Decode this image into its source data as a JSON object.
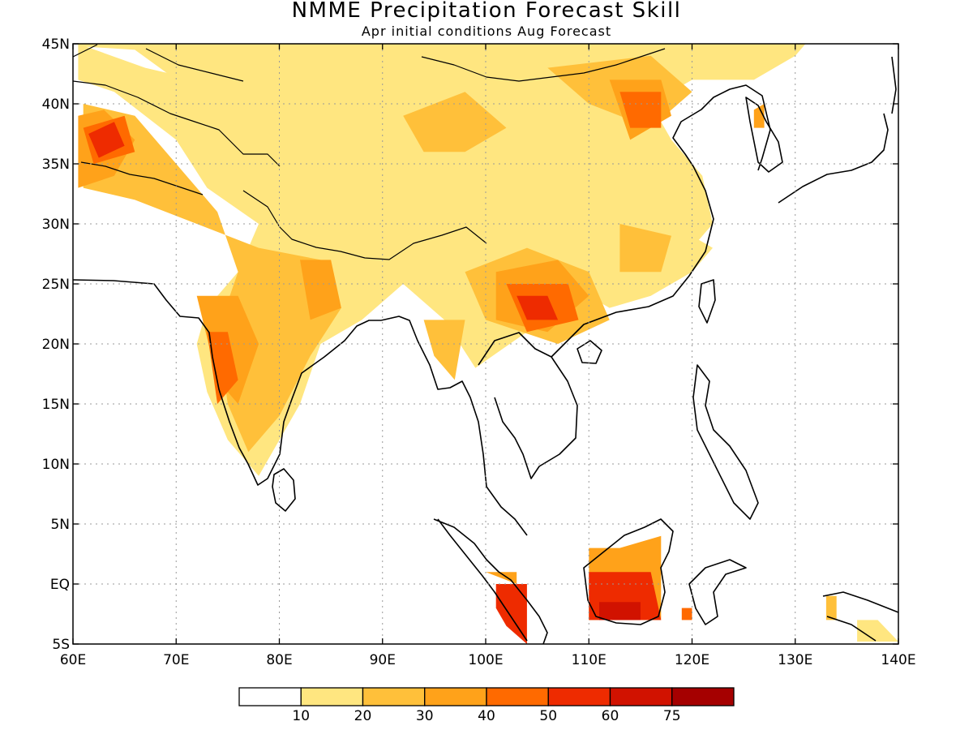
{
  "title": "NMME Precipitation Forecast Skill",
  "subtitle": "Apr initial conditions   Aug Forecast",
  "map": {
    "lon_range": [
      60,
      140
    ],
    "lat_range": [
      -5,
      45
    ],
    "x_ticks": [
      {
        "value": 60,
        "label": "60E"
      },
      {
        "value": 70,
        "label": "70E"
      },
      {
        "value": 80,
        "label": "80E"
      },
      {
        "value": 90,
        "label": "90E"
      },
      {
        "value": 100,
        "label": "100E"
      },
      {
        "value": 110,
        "label": "110E"
      },
      {
        "value": 120,
        "label": "120E"
      },
      {
        "value": 130,
        "label": "130E"
      },
      {
        "value": 140,
        "label": "140E"
      }
    ],
    "y_ticks": [
      {
        "value": 45,
        "label": "45N"
      },
      {
        "value": 40,
        "label": "40N"
      },
      {
        "value": 35,
        "label": "35N"
      },
      {
        "value": 30,
        "label": "30N"
      },
      {
        "value": 25,
        "label": "25N"
      },
      {
        "value": 20,
        "label": "20N"
      },
      {
        "value": 15,
        "label": "15N"
      },
      {
        "value": 10,
        "label": "10N"
      },
      {
        "value": 5,
        "label": "5N"
      },
      {
        "value": 0,
        "label": "EQ"
      },
      {
        "value": -5,
        "label": "5S"
      }
    ],
    "grid": "dotted"
  },
  "colorbar": {
    "colors": [
      "#ffffff",
      "#ffe680",
      "#ffc03a",
      "#ffa21a",
      "#ff6a00",
      "#ee2b00",
      "#d11200",
      "#a50000"
    ],
    "labels": [
      "10",
      "20",
      "30",
      "40",
      "50",
      "60",
      "75"
    ]
  },
  "skill_regions": [
    {
      "level": 1,
      "lon": [
        [
          60.5,
          44.8
        ],
        [
          66,
          44.5
        ],
        [
          70,
          42
        ],
        [
          72,
          37
        ],
        [
          76,
          33
        ],
        [
          80,
          31
        ],
        [
          86,
          28
        ],
        [
          92,
          27
        ],
        [
          97,
          26
        ],
        [
          102,
          28
        ],
        [
          106,
          31
        ],
        [
          110,
          32
        ],
        [
          114,
          31
        ],
        [
          120,
          28
        ],
        [
          122,
          30
        ],
        [
          121,
          34
        ],
        [
          118,
          37
        ],
        [
          116,
          40
        ],
        [
          120,
          42
        ],
        [
          126,
          42
        ],
        [
          130,
          44
        ],
        [
          131,
          45
        ],
        [
          60.5,
          45
        ]
      ]
    },
    {
      "level": 1,
      "lon": [
        [
          60.5,
          42
        ],
        [
          64,
          41
        ],
        [
          70,
          37
        ],
        [
          73,
          33
        ],
        [
          78,
          30
        ],
        [
          76,
          26
        ],
        [
          73,
          23
        ],
        [
          72,
          20
        ],
        [
          73,
          16
        ],
        [
          75,
          12
        ],
        [
          78,
          9
        ],
        [
          82,
          15
        ],
        [
          84,
          20
        ],
        [
          88,
          22
        ],
        [
          92,
          25
        ],
        [
          96,
          22
        ],
        [
          99,
          18
        ],
        [
          104,
          21
        ],
        [
          108,
          25
        ],
        [
          112,
          23
        ],
        [
          116,
          24
        ],
        [
          120,
          26
        ],
        [
          122,
          28
        ],
        [
          118,
          30
        ],
        [
          113,
          33
        ],
        [
          108,
          34
        ],
        [
          101,
          35
        ],
        [
          95,
          36
        ],
        [
          92,
          34
        ],
        [
          94,
          31
        ],
        [
          98,
          30
        ],
        [
          93,
          29
        ],
        [
          88,
          31
        ],
        [
          83,
          33
        ],
        [
          76,
          37
        ],
        [
          72,
          42
        ],
        [
          67,
          43
        ],
        [
          60.5,
          45
        ]
      ]
    },
    {
      "level": 2,
      "lon": [
        [
          61,
          40
        ],
        [
          66,
          39
        ],
        [
          70,
          35
        ],
        [
          74,
          31
        ],
        [
          76,
          26
        ],
        [
          74,
          21
        ],
        [
          75,
          15
        ],
        [
          77,
          11
        ],
        [
          80,
          14
        ],
        [
          83,
          19
        ],
        [
          86,
          23
        ],
        [
          84,
          27
        ],
        [
          78,
          28
        ],
        [
          72,
          30
        ],
        [
          66,
          32
        ],
        [
          61,
          33
        ]
      ]
    },
    {
      "level": 2,
      "lon": [
        [
          98,
          26
        ],
        [
          104,
          28
        ],
        [
          110,
          26
        ],
        [
          112,
          22
        ],
        [
          107,
          20
        ],
        [
          100,
          22
        ]
      ]
    },
    {
      "level": 2,
      "lon": [
        [
          92,
          39
        ],
        [
          98,
          41
        ],
        [
          102,
          38
        ],
        [
          98,
          36
        ],
        [
          94,
          36
        ]
      ]
    },
    {
      "level": 2,
      "lon": [
        [
          106,
          43
        ],
        [
          116,
          44
        ],
        [
          120,
          41
        ],
        [
          116,
          38
        ],
        [
          110,
          40
        ]
      ]
    },
    {
      "level": 2,
      "lon": [
        [
          94,
          22
        ],
        [
          98,
          22
        ],
        [
          97,
          17
        ],
        [
          95,
          19
        ]
      ]
    },
    {
      "level": 2,
      "lon": [
        [
          113,
          30
        ],
        [
          118,
          29
        ],
        [
          117,
          26
        ],
        [
          113,
          26
        ]
      ]
    },
    {
      "level": 3,
      "lon": [
        [
          60.5,
          39
        ],
        [
          63,
          39.5
        ],
        [
          66,
          37
        ],
        [
          64,
          34
        ],
        [
          60.5,
          33
        ]
      ]
    },
    {
      "level": 3,
      "lon": [
        [
          72,
          24
        ],
        [
          76,
          24
        ],
        [
          78,
          20
        ],
        [
          76,
          15
        ],
        [
          74,
          17
        ]
      ]
    },
    {
      "level": 3,
      "lon": [
        [
          82,
          27
        ],
        [
          85,
          27
        ],
        [
          86,
          23
        ],
        [
          83,
          22
        ]
      ]
    },
    {
      "level": 3,
      "lon": [
        [
          101,
          26
        ],
        [
          107,
          27
        ],
        [
          110,
          24
        ],
        [
          106,
          21
        ],
        [
          101,
          22
        ]
      ]
    },
    {
      "level": 3,
      "lon": [
        [
          112,
          42
        ],
        [
          117,
          42
        ],
        [
          118,
          39
        ],
        [
          114,
          37
        ]
      ]
    },
    {
      "level": 4,
      "lon": [
        [
          61,
          38
        ],
        [
          65,
          39
        ],
        [
          66,
          36
        ],
        [
          62,
          35
        ]
      ]
    },
    {
      "level": 4,
      "lon": [
        [
          73,
          21
        ],
        [
          75,
          21
        ],
        [
          76,
          17
        ],
        [
          74,
          15
        ]
      ]
    },
    {
      "level": 4,
      "lon": [
        [
          102,
          25
        ],
        [
          108,
          25
        ],
        [
          109,
          22
        ],
        [
          104,
          21
        ]
      ]
    },
    {
      "level": 4,
      "lon": [
        [
          113,
          41
        ],
        [
          117,
          41
        ],
        [
          117,
          38
        ],
        [
          114,
          38
        ]
      ]
    },
    {
      "level": 5,
      "lon": [
        [
          61.5,
          37.5
        ],
        [
          64,
          38.5
        ],
        [
          65,
          36.5
        ],
        [
          62.5,
          35.5
        ]
      ]
    },
    {
      "level": 5,
      "lon": [
        [
          103,
          24
        ],
        [
          106,
          24
        ],
        [
          107,
          22
        ],
        [
          104,
          22
        ]
      ]
    },
    {
      "level": 3,
      "lon": [
        [
          110,
          3
        ],
        [
          113,
          3
        ],
        [
          117,
          4
        ],
        [
          117,
          -3
        ],
        [
          110,
          -3
        ]
      ]
    },
    {
      "level": 5,
      "lon": [
        [
          110,
          1
        ],
        [
          116,
          1
        ],
        [
          117,
          -3
        ],
        [
          110,
          -3
        ]
      ]
    },
    {
      "level": 6,
      "lon": [
        [
          111,
          -1.5
        ],
        [
          115,
          -1.5
        ],
        [
          115,
          -3
        ],
        [
          111,
          -3
        ]
      ]
    },
    {
      "level": 3,
      "lon": [
        [
          100,
          1
        ],
        [
          103,
          1
        ],
        [
          103,
          0
        ]
      ]
    },
    {
      "level": 5,
      "lon": [
        [
          101,
          0
        ],
        [
          104,
          0
        ],
        [
          104,
          -5
        ],
        [
          102,
          -3.5
        ],
        [
          101,
          -2
        ]
      ]
    },
    {
      "level": 2,
      "lon": [
        [
          133,
          -1
        ],
        [
          134,
          -1
        ],
        [
          134,
          -3
        ],
        [
          133,
          -3
        ]
      ]
    },
    {
      "level": 1,
      "lon": [
        [
          136,
          -3
        ],
        [
          138,
          -3
        ],
        [
          140,
          -4.8
        ],
        [
          136,
          -4.8
        ]
      ]
    },
    {
      "level": 4,
      "lon": [
        [
          119,
          -2
        ],
        [
          120,
          -2
        ],
        [
          120,
          -3
        ],
        [
          119,
          -3
        ]
      ]
    },
    {
      "level": 3,
      "lon": [
        [
          126,
          39.5
        ],
        [
          127,
          40
        ],
        [
          127,
          38
        ],
        [
          126,
          38
        ]
      ]
    }
  ]
}
